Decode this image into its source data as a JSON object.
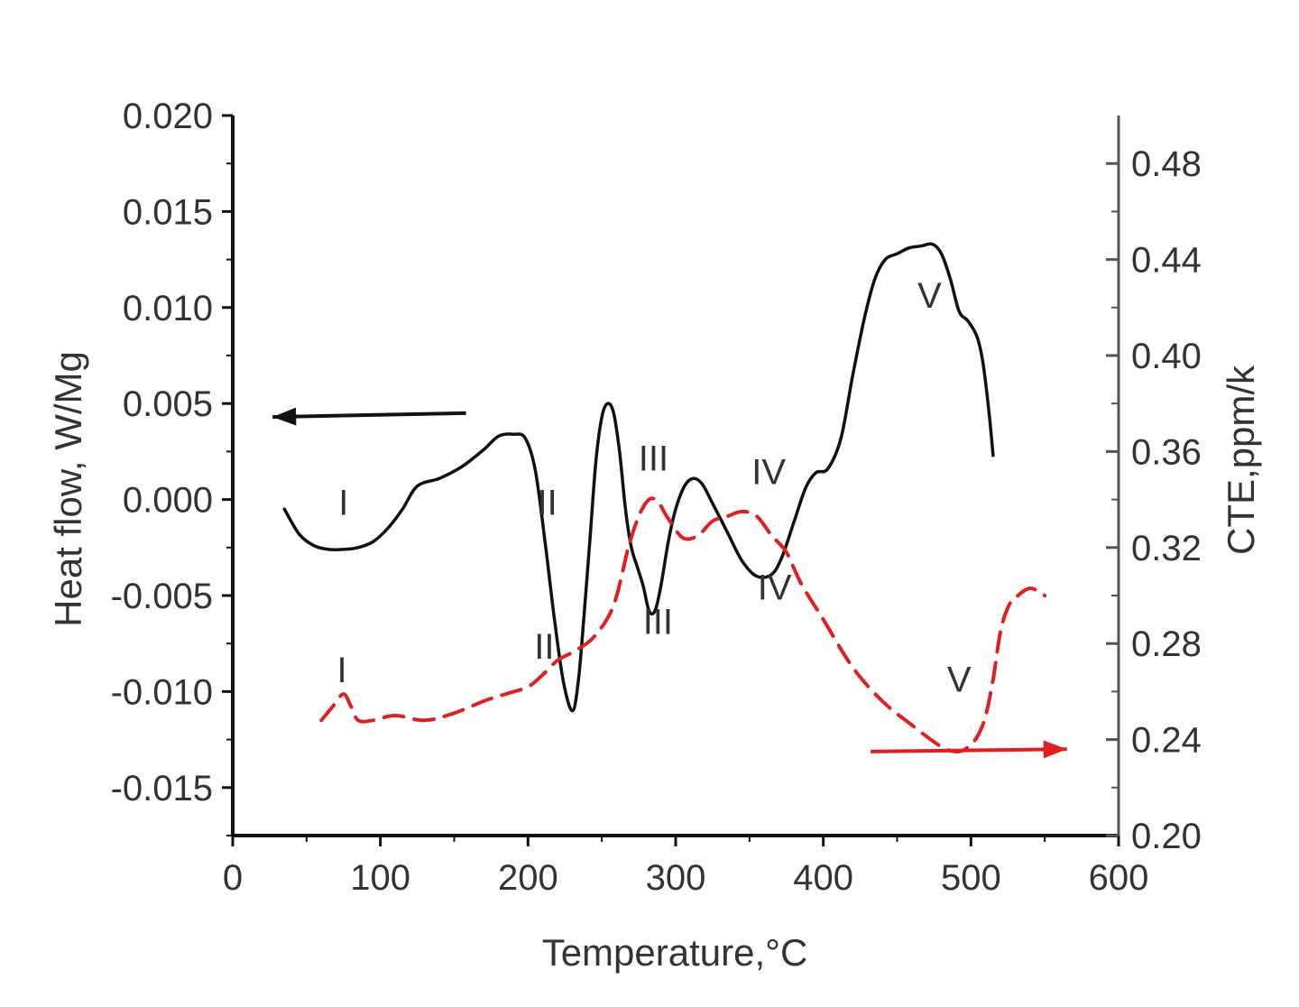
{
  "chart_data": {
    "type": "line",
    "xlabel": "Temperature,°C",
    "ylabel_left": "Heat flow, W/Mg",
    "ylabel_right": "CTE,ppm/k",
    "xlim": [
      0,
      600
    ],
    "ylim_left": [
      -0.0175,
      0.02
    ],
    "ylim_right": [
      0.2,
      0.5
    ],
    "x_ticks": [
      "0",
      "100",
      "200",
      "300",
      "400",
      "500",
      "600"
    ],
    "y_left_ticks": [
      "0.020",
      "0.015",
      "0.010",
      "0.005",
      "0.000",
      "-0.005",
      "-0.010",
      "-0.015"
    ],
    "y_right_ticks": [
      "0.48",
      "0.44",
      "0.40",
      "0.36",
      "0.32",
      "0.28",
      "0.24",
      "0.20"
    ],
    "grid": false,
    "colors": {
      "heat_flow": "#111111",
      "cte": "#e02020",
      "axis": "#111111",
      "right_axis": "#555555"
    },
    "series": [
      {
        "axis": "left",
        "style": "solid",
        "x": [
          35,
          45,
          55,
          65,
          75,
          85,
          95,
          105,
          115,
          125,
          140,
          155,
          170,
          180,
          190,
          198,
          205,
          212,
          218,
          224,
          230,
          234,
          238,
          242,
          246,
          250,
          254,
          258,
          262,
          266,
          270,
          274,
          278,
          282,
          286,
          290,
          295,
          300,
          306,
          312,
          318,
          325,
          335,
          345,
          355,
          365,
          372,
          380,
          388,
          395,
          403,
          412,
          420,
          428,
          435,
          442,
          450,
          458,
          466,
          474,
          480,
          486,
          492,
          498,
          504,
          508,
          512,
          515
        ],
        "y": [
          -0.0005,
          -0.0018,
          -0.0024,
          -0.0026,
          -0.0026,
          -0.0025,
          -0.0022,
          -0.0015,
          -0.0005,
          0.0007,
          0.0011,
          0.0017,
          0.0026,
          0.0033,
          0.0034,
          0.0032,
          0.0015,
          -0.0025,
          -0.0063,
          -0.0095,
          -0.011,
          -0.0095,
          -0.006,
          -0.002,
          0.002,
          0.0043,
          0.005,
          0.0045,
          0.0025,
          -0.0005,
          -0.0025,
          -0.0035,
          -0.0045,
          -0.0058,
          -0.0058,
          -0.0045,
          -0.0022,
          -0.0005,
          0.0007,
          0.0011,
          0.0008,
          -0.0002,
          -0.0017,
          -0.0032,
          -0.004,
          -0.0039,
          -0.003,
          -0.0012,
          0.0006,
          0.0014,
          0.0016,
          0.0032,
          0.0065,
          0.0095,
          0.0115,
          0.0125,
          0.0128,
          0.0131,
          0.0132,
          0.0133,
          0.0128,
          0.0115,
          0.0098,
          0.0093,
          0.0085,
          0.0072,
          0.0047,
          0.0023
        ]
      },
      {
        "axis": "right",
        "style": "dashed",
        "x": [
          60,
          68,
          75,
          80,
          85,
          95,
          110,
          130,
          150,
          170,
          185,
          200,
          210,
          220,
          232,
          245,
          258,
          268,
          275,
          282,
          288,
          295,
          305,
          315,
          325,
          335,
          345,
          355,
          365,
          375,
          385,
          400,
          420,
          440,
          460,
          480,
          492,
          500,
          505,
          510,
          515,
          520,
          525,
          530,
          540,
          550
        ],
        "y": [
          0.248,
          0.254,
          0.259,
          0.254,
          0.248,
          0.248,
          0.25,
          0.248,
          0.251,
          0.256,
          0.259,
          0.262,
          0.267,
          0.273,
          0.277,
          0.283,
          0.296,
          0.32,
          0.333,
          0.34,
          0.339,
          0.332,
          0.324,
          0.325,
          0.331,
          0.333,
          0.335,
          0.333,
          0.325,
          0.318,
          0.305,
          0.29,
          0.27,
          0.256,
          0.246,
          0.237,
          0.235,
          0.238,
          0.242,
          0.25,
          0.265,
          0.285,
          0.295,
          0.299,
          0.303,
          0.3
        ]
      }
    ],
    "arrows": [
      {
        "axis": "left",
        "from": [
          158,
          0.0045
        ],
        "to": [
          27,
          0.0043
        ]
      },
      {
        "axis": "right",
        "from": [
          432,
          0.235
        ],
        "to": [
          565,
          0.236
        ]
      }
    ],
    "annotations": [
      {
        "text": "I",
        "x": 75,
        "y": -0.0008,
        "axis": "left"
      },
      {
        "text": "II",
        "x": 213,
        "y": -0.0008,
        "axis": "left"
      },
      {
        "text": "III",
        "x": 285,
        "y": 0.0015,
        "axis": "left"
      },
      {
        "text": "IV",
        "x": 363,
        "y": 0.0008,
        "axis": "left"
      },
      {
        "text": "V",
        "x": 472,
        "y": 0.01,
        "axis": "left"
      },
      {
        "text": "I",
        "x": 74,
        "y": -0.0095,
        "axis": "left"
      },
      {
        "text": "II",
        "x": 211,
        "y": -0.0083,
        "axis": "left"
      },
      {
        "text": "III",
        "x": 288,
        "y": -0.007,
        "axis": "left"
      },
      {
        "text": "IV",
        "x": 367,
        "y": -0.0052,
        "axis": "left"
      },
      {
        "text": "V",
        "x": 492,
        "y": -0.01,
        "axis": "left"
      }
    ]
  }
}
